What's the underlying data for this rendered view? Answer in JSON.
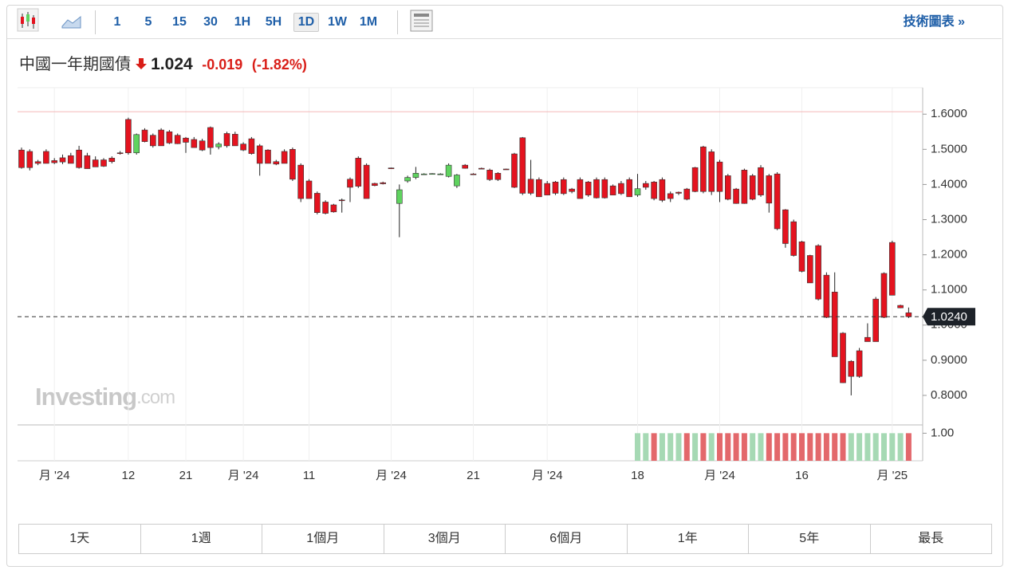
{
  "toolbar": {
    "intervals": [
      "1",
      "5",
      "15",
      "30",
      "1H",
      "5H",
      "1D",
      "1W",
      "1M"
    ],
    "active_interval": "1D",
    "link": "技術圖表 »"
  },
  "header": {
    "title": "中國一年期國債",
    "price": "1.024",
    "change": "-0.019",
    "change_pct": "(-1.82%)"
  },
  "watermark": {
    "brand": "Investing",
    "suffix": ".com"
  },
  "ranges": [
    "1天",
    "1週",
    "1個月",
    "3個月",
    "6個月",
    "1年",
    "5年",
    "最長"
  ],
  "chart_data": {
    "type": "candlestick",
    "categories": [
      null,
      null,
      null,
      null,
      "月 '24",
      null,
      null,
      null,
      null,
      null,
      null,
      null,
      null,
      "12",
      null,
      null,
      null,
      null,
      null,
      null,
      "21",
      null,
      null,
      null,
      null,
      null,
      null,
      "月 '24",
      null,
      null,
      null,
      null,
      null,
      null,
      null,
      "11",
      null,
      null,
      null,
      null,
      null,
      null,
      null,
      null,
      null,
      "月 '24",
      null,
      null,
      null,
      null,
      null,
      null,
      null,
      null,
      null,
      "21",
      null,
      null,
      null,
      null,
      null,
      null,
      null,
      null,
      "月 '24",
      null,
      null,
      null,
      null,
      null,
      null,
      null,
      null,
      null,
      null,
      "18",
      null,
      null,
      null,
      null,
      null,
      null,
      null,
      null,
      null,
      "月 '24",
      null,
      null,
      null,
      null,
      null,
      null,
      null,
      null,
      null,
      "16",
      null,
      null,
      null,
      null,
      null,
      null,
      null,
      null,
      null,
      null,
      "月 '25",
      null,
      null
    ],
    "ohlc": [
      [
        1.498,
        1.505,
        1.445,
        1.448
      ],
      [
        1.494,
        1.5,
        1.44,
        1.448
      ],
      [
        1.465,
        1.47,
        1.455,
        1.46
      ],
      [
        1.494,
        1.5,
        1.46,
        1.46
      ],
      [
        1.468,
        1.475,
        1.458,
        1.462
      ],
      [
        1.476,
        1.485,
        1.458,
        1.464
      ],
      [
        1.482,
        1.49,
        1.46,
        1.46
      ],
      [
        1.498,
        1.51,
        1.445,
        1.448
      ],
      [
        1.482,
        1.49,
        1.445,
        1.445
      ],
      [
        1.47,
        1.48,
        1.45,
        1.45
      ],
      [
        1.47,
        1.475,
        1.45,
        1.452
      ],
      [
        1.475,
        1.48,
        1.46,
        1.465
      ],
      [
        1.49,
        1.495,
        1.485,
        1.488
      ],
      [
        1.585,
        1.59,
        1.485,
        1.49
      ],
      [
        1.49,
        1.545,
        1.485,
        1.542
      ],
      [
        1.555,
        1.56,
        1.52,
        1.522
      ],
      [
        1.54,
        1.545,
        1.505,
        1.51
      ],
      [
        1.555,
        1.56,
        1.51,
        1.51
      ],
      [
        1.55,
        1.555,
        1.515,
        1.518
      ],
      [
        1.54,
        1.545,
        1.515,
        1.516
      ],
      [
        1.532,
        1.535,
        1.49,
        1.52
      ],
      [
        1.528,
        1.535,
        1.505,
        1.505
      ],
      [
        1.524,
        1.53,
        1.495,
        1.498
      ],
      [
        1.562,
        1.565,
        1.485,
        1.505
      ],
      [
        1.507,
        1.52,
        1.5,
        1.515
      ],
      [
        1.545,
        1.55,
        1.505,
        1.51
      ],
      [
        1.543,
        1.55,
        1.51,
        1.51
      ],
      [
        1.515,
        1.52,
        1.495,
        1.498
      ],
      [
        1.53,
        1.535,
        1.485,
        1.488
      ],
      [
        1.51,
        1.515,
        1.425,
        1.46
      ],
      [
        1.498,
        1.5,
        1.46,
        1.46
      ],
      [
        1.465,
        1.47,
        1.455,
        1.458
      ],
      [
        1.494,
        1.5,
        1.46,
        1.46
      ],
      [
        1.5,
        1.505,
        1.41,
        1.415
      ],
      [
        1.455,
        1.46,
        1.35,
        1.36
      ],
      [
        1.41,
        1.415,
        1.36,
        1.36
      ],
      [
        1.375,
        1.38,
        1.315,
        1.32
      ],
      [
        1.35,
        1.355,
        1.315,
        1.318
      ],
      [
        1.342,
        1.345,
        1.32,
        1.322
      ],
      [
        1.356,
        1.36,
        1.32,
        1.355
      ],
      [
        1.415,
        1.42,
        1.35,
        1.392
      ],
      [
        1.475,
        1.48,
        1.39,
        1.395
      ],
      [
        1.455,
        1.46,
        1.365,
        1.36
      ],
      [
        1.403,
        1.405,
        1.395,
        1.397
      ],
      [
        1.405,
        1.408,
        1.4,
        1.402
      ],
      [
        1.447,
        1.448,
        1.446,
        1.446
      ],
      [
        1.346,
        1.4,
        1.25,
        1.385
      ],
      [
        1.41,
        1.425,
        1.405,
        1.42
      ],
      [
        1.42,
        1.45,
        1.415,
        1.432
      ],
      [
        1.43,
        1.432,
        1.428,
        1.43
      ],
      [
        1.43,
        1.432,
        1.43,
        1.431
      ],
      [
        1.43,
        1.432,
        1.428,
        1.43
      ],
      [
        1.423,
        1.46,
        1.42,
        1.455
      ],
      [
        1.396,
        1.43,
        1.39,
        1.427
      ],
      [
        1.455,
        1.458,
        1.445,
        1.446
      ],
      [
        1.43,
        1.432,
        1.428,
        1.429
      ],
      [
        1.446,
        1.448,
        1.444,
        1.445
      ],
      [
        1.441,
        1.445,
        1.41,
        1.414
      ],
      [
        1.432,
        1.435,
        1.41,
        1.414
      ],
      [
        1.444,
        1.445,
        1.442,
        1.443
      ],
      [
        1.487,
        1.49,
        1.39,
        1.392
      ],
      [
        1.533,
        1.535,
        1.37,
        1.375
      ],
      [
        1.415,
        1.47,
        1.37,
        1.375
      ],
      [
        1.414,
        1.42,
        1.365,
        1.365
      ],
      [
        1.403,
        1.41,
        1.37,
        1.37
      ],
      [
        1.407,
        1.41,
        1.37,
        1.375
      ],
      [
        1.414,
        1.42,
        1.37,
        1.374
      ],
      [
        1.387,
        1.39,
        1.375,
        1.38
      ],
      [
        1.414,
        1.42,
        1.36,
        1.36
      ],
      [
        1.407,
        1.41,
        1.365,
        1.37
      ],
      [
        1.414,
        1.42,
        1.36,
        1.362
      ],
      [
        1.414,
        1.42,
        1.36,
        1.362
      ],
      [
        1.396,
        1.4,
        1.37,
        1.37
      ],
      [
        1.403,
        1.41,
        1.37,
        1.374
      ],
      [
        1.414,
        1.42,
        1.365,
        1.365
      ],
      [
        1.37,
        1.43,
        1.365,
        1.388
      ],
      [
        1.403,
        1.41,
        1.385,
        1.392
      ],
      [
        1.407,
        1.41,
        1.355,
        1.36
      ],
      [
        1.414,
        1.42,
        1.35,
        1.355
      ],
      [
        1.374,
        1.38,
        1.35,
        1.36
      ],
      [
        1.378,
        1.38,
        1.37,
        1.375
      ],
      [
        1.387,
        1.39,
        1.355,
        1.358
      ],
      [
        1.448,
        1.45,
        1.378,
        1.38
      ],
      [
        1.507,
        1.51,
        1.375,
        1.38
      ],
      [
        1.493,
        1.5,
        1.37,
        1.38
      ],
      [
        1.464,
        1.47,
        1.35,
        1.38
      ],
      [
        1.425,
        1.43,
        1.355,
        1.358
      ],
      [
        1.387,
        1.39,
        1.345,
        1.346
      ],
      [
        1.441,
        1.445,
        1.345,
        1.346
      ],
      [
        1.425,
        1.43,
        1.355,
        1.358
      ],
      [
        1.448,
        1.455,
        1.365,
        1.37
      ],
      [
        1.425,
        1.43,
        1.32,
        1.347
      ],
      [
        1.43,
        1.435,
        1.27,
        1.274
      ],
      [
        1.328,
        1.33,
        1.22,
        1.232
      ],
      [
        1.294,
        1.3,
        1.195,
        1.198
      ],
      [
        1.237,
        1.24,
        1.15,
        1.153
      ],
      [
        1.198,
        1.2,
        1.12,
        1.12
      ],
      [
        1.226,
        1.23,
        1.07,
        1.074
      ],
      [
        1.142,
        1.15,
        1.02,
        1.022
      ],
      [
        1.094,
        1.15,
        0.91,
        0.91
      ],
      [
        0.977,
        0.98,
        0.835,
        0.836
      ],
      [
        0.897,
        0.9,
        0.8,
        0.854
      ],
      [
        0.927,
        0.935,
        0.85,
        0.854
      ],
      [
        0.965,
        1.005,
        0.955,
        0.953
      ],
      [
        1.074,
        1.08,
        0.953,
        0.953
      ],
      [
        1.147,
        1.15,
        1.02,
        1.022
      ],
      [
        1.235,
        1.24,
        1.085,
        1.085
      ],
      [
        1.056,
        1.058,
        1.048,
        1.049
      ],
      [
        1.035,
        1.05,
        1.02,
        1.024
      ]
    ],
    "up_color": "#5fd35f",
    "down_color": "#e4131f",
    "wick_color": "#222222",
    "ylim": [
      0.716,
      1.664
    ],
    "yticks": [
      {
        "value": 0.8,
        "label": "0.8000"
      },
      {
        "value": 0.9,
        "label": "0.9000"
      },
      {
        "value": 1.0,
        "label": "1.0000"
      },
      {
        "value": 1.1,
        "label": "1.1000"
      },
      {
        "value": 1.2,
        "label": "1.2000"
      },
      {
        "value": 1.3,
        "label": "1.3000"
      },
      {
        "value": 1.4,
        "label": "1.4000"
      },
      {
        "value": 1.5,
        "label": "1.5000"
      },
      {
        "value": 1.6,
        "label": "1.6000"
      }
    ],
    "high_line": 1.607,
    "high_line_color": "#f4b6b6",
    "last": {
      "value": 1.024,
      "label": "1.0240"
    },
    "volume": {
      "values": [
        null,
        null,
        null,
        null,
        null,
        null,
        null,
        null,
        null,
        null,
        null,
        null,
        null,
        null,
        null,
        null,
        null,
        null,
        null,
        null,
        null,
        null,
        null,
        null,
        null,
        null,
        null,
        null,
        null,
        null,
        null,
        null,
        null,
        null,
        null,
        null,
        null,
        null,
        null,
        null,
        null,
        null,
        null,
        null,
        null,
        null,
        null,
        null,
        null,
        null,
        null,
        null,
        null,
        null,
        null,
        null,
        null,
        null,
        null,
        null,
        null,
        null,
        null,
        null,
        null,
        null,
        null,
        null,
        null,
        null,
        null,
        null,
        null,
        null,
        null,
        1,
        1,
        1,
        1,
        1,
        1,
        1,
        1,
        1,
        1,
        1,
        1,
        1,
        1,
        1,
        1,
        1,
        1,
        1,
        1,
        1,
        1,
        1,
        1,
        1,
        1,
        1,
        1,
        1,
        1,
        1,
        1,
        1,
        1
      ],
      "colors": [
        null,
        null,
        null,
        null,
        null,
        null,
        null,
        null,
        null,
        null,
        null,
        null,
        null,
        null,
        null,
        null,
        null,
        null,
        null,
        null,
        null,
        null,
        null,
        null,
        null,
        null,
        null,
        null,
        null,
        null,
        null,
        null,
        null,
        null,
        null,
        null,
        null,
        null,
        null,
        null,
        null,
        null,
        null,
        null,
        null,
        null,
        null,
        null,
        null,
        null,
        null,
        null,
        null,
        null,
        null,
        null,
        null,
        null,
        null,
        null,
        null,
        null,
        null,
        null,
        null,
        null,
        null,
        null,
        null,
        null,
        null,
        null,
        null,
        null,
        null,
        "#a6d9b4",
        "#a6d9b4",
        "#e3686b",
        "#a6d9b4",
        "#a6d9b4",
        "#a6d9b4",
        "#e3686b",
        "#a6d9b4",
        "#e3686b",
        "#a6d9b4",
        "#e3686b",
        "#e3686b",
        "#e3686b",
        "#e3686b",
        "#a6d9b4",
        "#a6d9b4",
        "#e3686b",
        "#e3686b",
        "#e3686b",
        "#e3686b",
        "#e3686b",
        "#e3686b",
        "#e3686b",
        "#e3686b",
        "#e3686b",
        "#e3686b",
        "#a6d9b4",
        "#a6d9b4",
        "#a6d9b4",
        "#a6d9b4",
        "#a6d9b4",
        "#a6d9b4",
        "#a6d9b4",
        "#e3686b"
      ],
      "ylim": [
        0,
        1.3
      ],
      "yticks": [
        {
          "value": 1,
          "label": "1.00"
        }
      ]
    }
  }
}
